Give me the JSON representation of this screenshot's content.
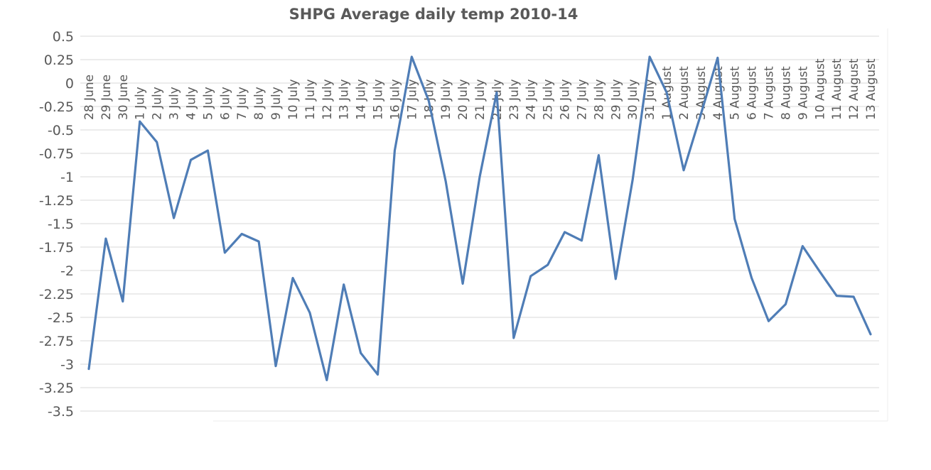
{
  "chart_data": {
    "type": "line",
    "title": "SHPG Average daily temp 2010-14",
    "xlabel": "",
    "ylabel": "",
    "ylim": [
      -3.5,
      0.5
    ],
    "yticks": [
      0.5,
      0.25,
      0,
      -0.25,
      -0.5,
      -0.75,
      -1,
      -1.25,
      -1.5,
      -1.75,
      -2,
      -2.25,
      -2.5,
      -2.75,
      -3,
      -3.25,
      -3.5
    ],
    "ytick_labels": [
      "0.5",
      "0.25",
      "0",
      "-0.25",
      "-0.5",
      "-0.75",
      "-1",
      "-1.25",
      "-1.5",
      "-1.75",
      "-2",
      "-2.25",
      "-2.5",
      "-2.75",
      "-3",
      "-3.25",
      "-3.5"
    ],
    "grid": true,
    "legend": "none",
    "categories": [
      "28 June",
      "29 June",
      "30 June",
      "1 July",
      "2 July",
      "3 July",
      "4 July",
      "5 July",
      "6 July",
      "7 July",
      "8 July",
      "9 July",
      "10 July",
      "11 July",
      "12 July",
      "13 July",
      "14 July",
      "15 July",
      "16 July",
      "17 July",
      "18 July",
      "19 July",
      "20 July",
      "21 July",
      "22 July",
      "23 July",
      "24 July",
      "25 July",
      "26 July",
      "27 July",
      "28 July",
      "29 July",
      "30 July",
      "31 July",
      "1 August",
      "2 August",
      "3 August",
      "4 August",
      "5 August",
      "6 August",
      "7 August",
      "8 August",
      "9 August",
      "10 August",
      "11 August",
      "12 August",
      "13 August"
    ],
    "series": [
      {
        "name": "",
        "color": "#4f7db6",
        "values": [
          -3.05,
          -1.66,
          -2.33,
          -0.41,
          -0.63,
          -1.44,
          -0.82,
          -0.72,
          -1.81,
          -1.61,
          -1.69,
          -3.02,
          -2.08,
          -2.45,
          -3.17,
          -2.15,
          -2.88,
          -3.11,
          -0.72,
          0.28,
          -0.19,
          -1.05,
          -2.14,
          -1.0,
          -0.1,
          -2.72,
          -2.06,
          -1.94,
          -1.59,
          -1.68,
          -0.77,
          -2.09,
          -1.03,
          0.28,
          -0.1,
          -0.93,
          -0.34,
          0.27,
          -1.45,
          -2.08,
          -2.54,
          -2.36,
          -1.74,
          -2.01,
          -2.27,
          -2.28,
          -2.68
        ]
      }
    ]
  }
}
